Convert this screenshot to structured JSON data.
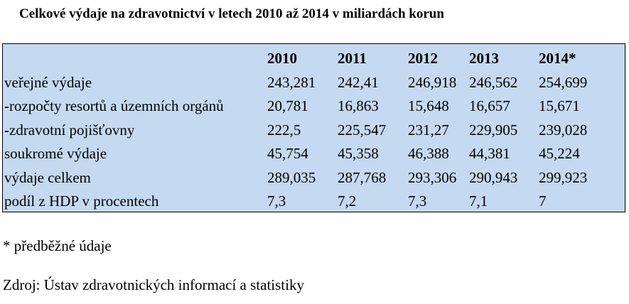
{
  "title": "Celkové výdaje na zdravotnictví v letech 2010 až 2014 v miliardách korun",
  "table": {
    "headers": [
      "",
      "2010",
      "2011",
      "2012",
      "2013",
      "2014*"
    ],
    "rows": [
      [
        "veřejné výdaje",
        "243,281",
        "242,41",
        "246,918",
        "246,562",
        "254,699"
      ],
      [
        "-rozpočty resortů a územních orgánů",
        "20,781",
        "16,863",
        "15,648",
        "16,657",
        "15,671"
      ],
      [
        "-zdravotní pojišťovny",
        "222,5",
        "225,547",
        "231,27",
        "229,905",
        "239,028"
      ],
      [
        "soukromé výdaje",
        "45,754",
        "45,358",
        "46,388",
        "44,381",
        "45,224"
      ],
      [
        "výdaje celkem",
        "289,035",
        "287,768",
        "293,306",
        "290,943",
        "299,923"
      ],
      [
        "podíl z HDP v procentech",
        "7,3",
        "7,2",
        "7,3",
        "7,1",
        "7"
      ]
    ],
    "background": "#c5d9f1"
  },
  "footnote": "* předběžné údaje",
  "source": "Zdroj: Ústav zdravotnických informací a statistiky"
}
